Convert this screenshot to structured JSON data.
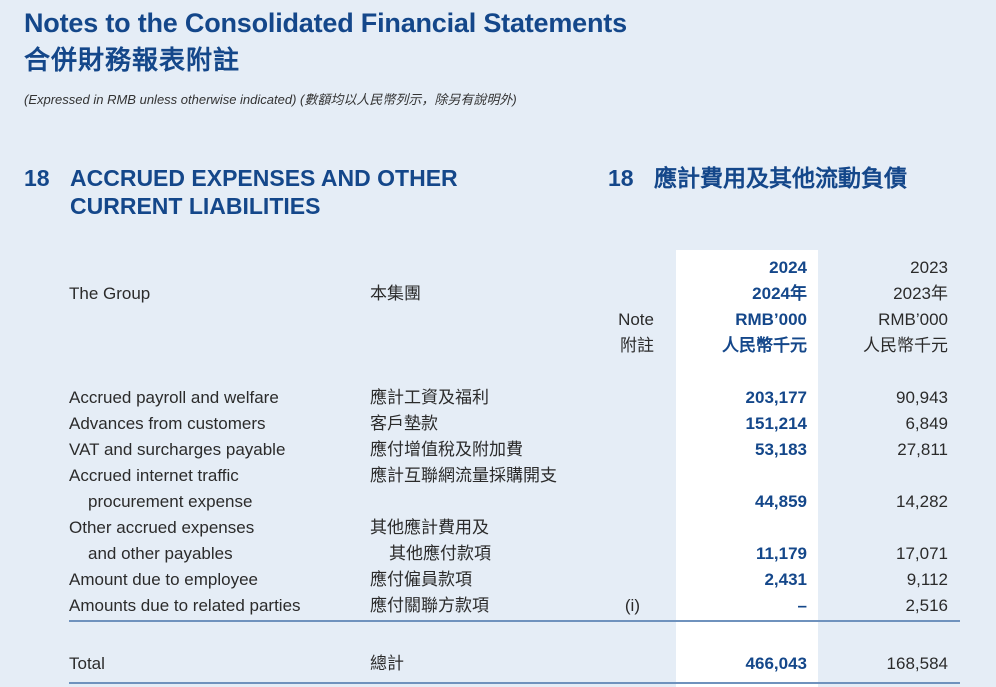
{
  "header": {
    "title_en": "Notes to the Consolidated Financial Statements",
    "title_zh": "合併財務報表附註",
    "subtitle": "(Expressed in RMB unless otherwise indicated) (數額均以人民幣列示，除另有說明外)"
  },
  "section": {
    "number": "18",
    "title_en_line1": "ACCRUED EXPENSES AND OTHER",
    "title_en_line2": "CURRENT LIABILITIES",
    "number_zh": "18",
    "title_zh": "應計費用及其他流動負債"
  },
  "table": {
    "group_en": "The Group",
    "group_zh": "本集團",
    "note_header_en": "Note",
    "note_header_zh": "附註",
    "col_2024": {
      "year": "2024",
      "year_zh": "2024年",
      "unit": "RMB’000",
      "unit_zh": "人民幣千元"
    },
    "col_2023": {
      "year": "2023",
      "year_zh": "2023年",
      "unit": "RMB’000",
      "unit_zh": "人民幣千元"
    },
    "rows": [
      {
        "en": "Accrued payroll and welfare",
        "zh": "應計工資及福利",
        "note": "",
        "v2024": "203,177",
        "v2023": "90,943"
      },
      {
        "en": "Advances from customers",
        "zh": "客戶墊款",
        "note": "",
        "v2024": "151,214",
        "v2023": "6,849"
      },
      {
        "en": "VAT and surcharges payable",
        "zh": "應付增值稅及附加費",
        "note": "",
        "v2024": "53,183",
        "v2023": "27,811"
      },
      {
        "en": "Accrued internet traffic",
        "en2": "procurement expense",
        "zh": "應計互聯網流量採購開支",
        "note": "",
        "v2024": "44,859",
        "v2023": "14,282"
      },
      {
        "en": "Other accrued expenses",
        "en2": "and other payables",
        "zh": "其他應計費用及",
        "zh2": "其他應付款項",
        "note": "",
        "v2024": "11,179",
        "v2023": "17,071"
      },
      {
        "en": "Amount due to employee",
        "zh": "應付僱員款項",
        "note": "",
        "v2024": "2,431",
        "v2023": "9,112"
      },
      {
        "en": "Amounts due to related parties",
        "zh": "應付關聯方款項",
        "note": "(i)",
        "v2024": "–",
        "v2023": "2,516"
      }
    ],
    "total": {
      "en": "Total",
      "zh": "總計",
      "v2024": "466,043",
      "v2023": "168,584"
    }
  }
}
